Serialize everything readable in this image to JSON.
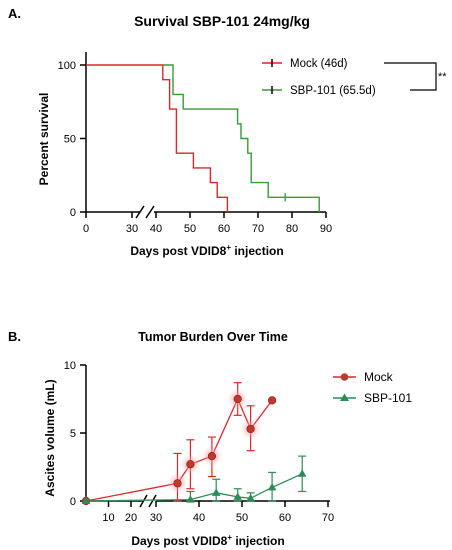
{
  "chart_data": [
    {
      "panel_label": "A.",
      "type": "line",
      "subtype": "kaplan-meier step",
      "title": "Survival SBP-101 24mg/kg",
      "xlabel": "Days post VDID8",
      "xlabel_sup": "+",
      "xlabel_tail": " injection",
      "ylabel": "Percent survival",
      "x_break": true,
      "xticks": [
        "0",
        "30",
        "40",
        "50",
        "60",
        "70",
        "80",
        "90"
      ],
      "yticks": [
        "0",
        "50",
        "100"
      ],
      "ylim": [
        0,
        100
      ],
      "legend_position": "top-right",
      "significance": "**",
      "colors": {
        "Mock": "#d9262b",
        "SBP-101": "#3a9a3a"
      },
      "series": [
        {
          "name": "Mock (46d)",
          "x": [
            0,
            33,
            42,
            42,
            44,
            44,
            46,
            46,
            51,
            51,
            56,
            56,
            58,
            58,
            61,
            61
          ],
          "y": [
            100,
            100,
            100,
            90,
            90,
            70,
            70,
            40,
            40,
            30,
            30,
            20,
            20,
            10,
            10,
            0
          ]
        },
        {
          "name": "SBP-101 (65.5d)",
          "x": [
            42,
            45,
            45,
            48,
            48,
            64,
            64,
            65,
            65,
            67,
            67,
            68,
            68,
            73,
            73,
            78,
            78,
            88,
            88
          ],
          "y": [
            100,
            100,
            80,
            80,
            70,
            70,
            60,
            60,
            50,
            50,
            40,
            40,
            20,
            20,
            10,
            10,
            10,
            10,
            0
          ]
        }
      ],
      "censor_marks": [
        {
          "series": "SBP-101 (65.5d)",
          "x": 78,
          "y": 10
        }
      ]
    },
    {
      "panel_label": "B.",
      "type": "line",
      "subtype": "mean with error bars",
      "title": "Tumor Burden Over Time",
      "xlabel": "Days post VDID8",
      "xlabel_sup": "+",
      "xlabel_tail": " injection",
      "ylabel": "Ascites volume (mL)",
      "x_break": true,
      "xticks": [
        "10",
        "20",
        "30",
        "40",
        "50",
        "60",
        "70"
      ],
      "yticks": [
        "0",
        "5",
        "10"
      ],
      "ylim": [
        0,
        10
      ],
      "legend_position": "top-right",
      "series": [
        {
          "name": "Mock",
          "color": "#e0262b",
          "marker": "circle",
          "points": [
            {
              "x": 0,
              "y": 0,
              "lo": 0,
              "hi": 0
            },
            {
              "x": 35,
              "y": 1.3,
              "lo": 0,
              "hi": 3.5
            },
            {
              "x": 38,
              "y": 2.7,
              "lo": 0.9,
              "hi": 4.5
            },
            {
              "x": 43,
              "y": 3.3,
              "lo": 1.8,
              "hi": 4.7
            },
            {
              "x": 49,
              "y": 7.5,
              "lo": 6.3,
              "hi": 8.7
            },
            {
              "x": 52,
              "y": 5.3,
              "lo": 3.7,
              "hi": 7.0
            },
            {
              "x": 57,
              "y": 7.4,
              "lo": 7.4,
              "hi": 7.4
            }
          ]
        },
        {
          "name": "SBP-101",
          "color": "#2e8b57",
          "marker": "triangle",
          "points": [
            {
              "x": 0,
              "y": 0,
              "lo": 0,
              "hi": 0
            },
            {
              "x": 38,
              "y": 0.1,
              "lo": 0,
              "hi": 0.7
            },
            {
              "x": 44,
              "y": 0.6,
              "lo": 0,
              "hi": 1.6
            },
            {
              "x": 49,
              "y": 0.3,
              "lo": 0,
              "hi": 0.9
            },
            {
              "x": 52,
              "y": 0.2,
              "lo": 0,
              "hi": 0.6
            },
            {
              "x": 57,
              "y": 1.0,
              "lo": 0,
              "hi": 2.1
            },
            {
              "x": 64,
              "y": 2.0,
              "lo": 0.7,
              "hi": 3.3
            }
          ]
        }
      ]
    }
  ]
}
